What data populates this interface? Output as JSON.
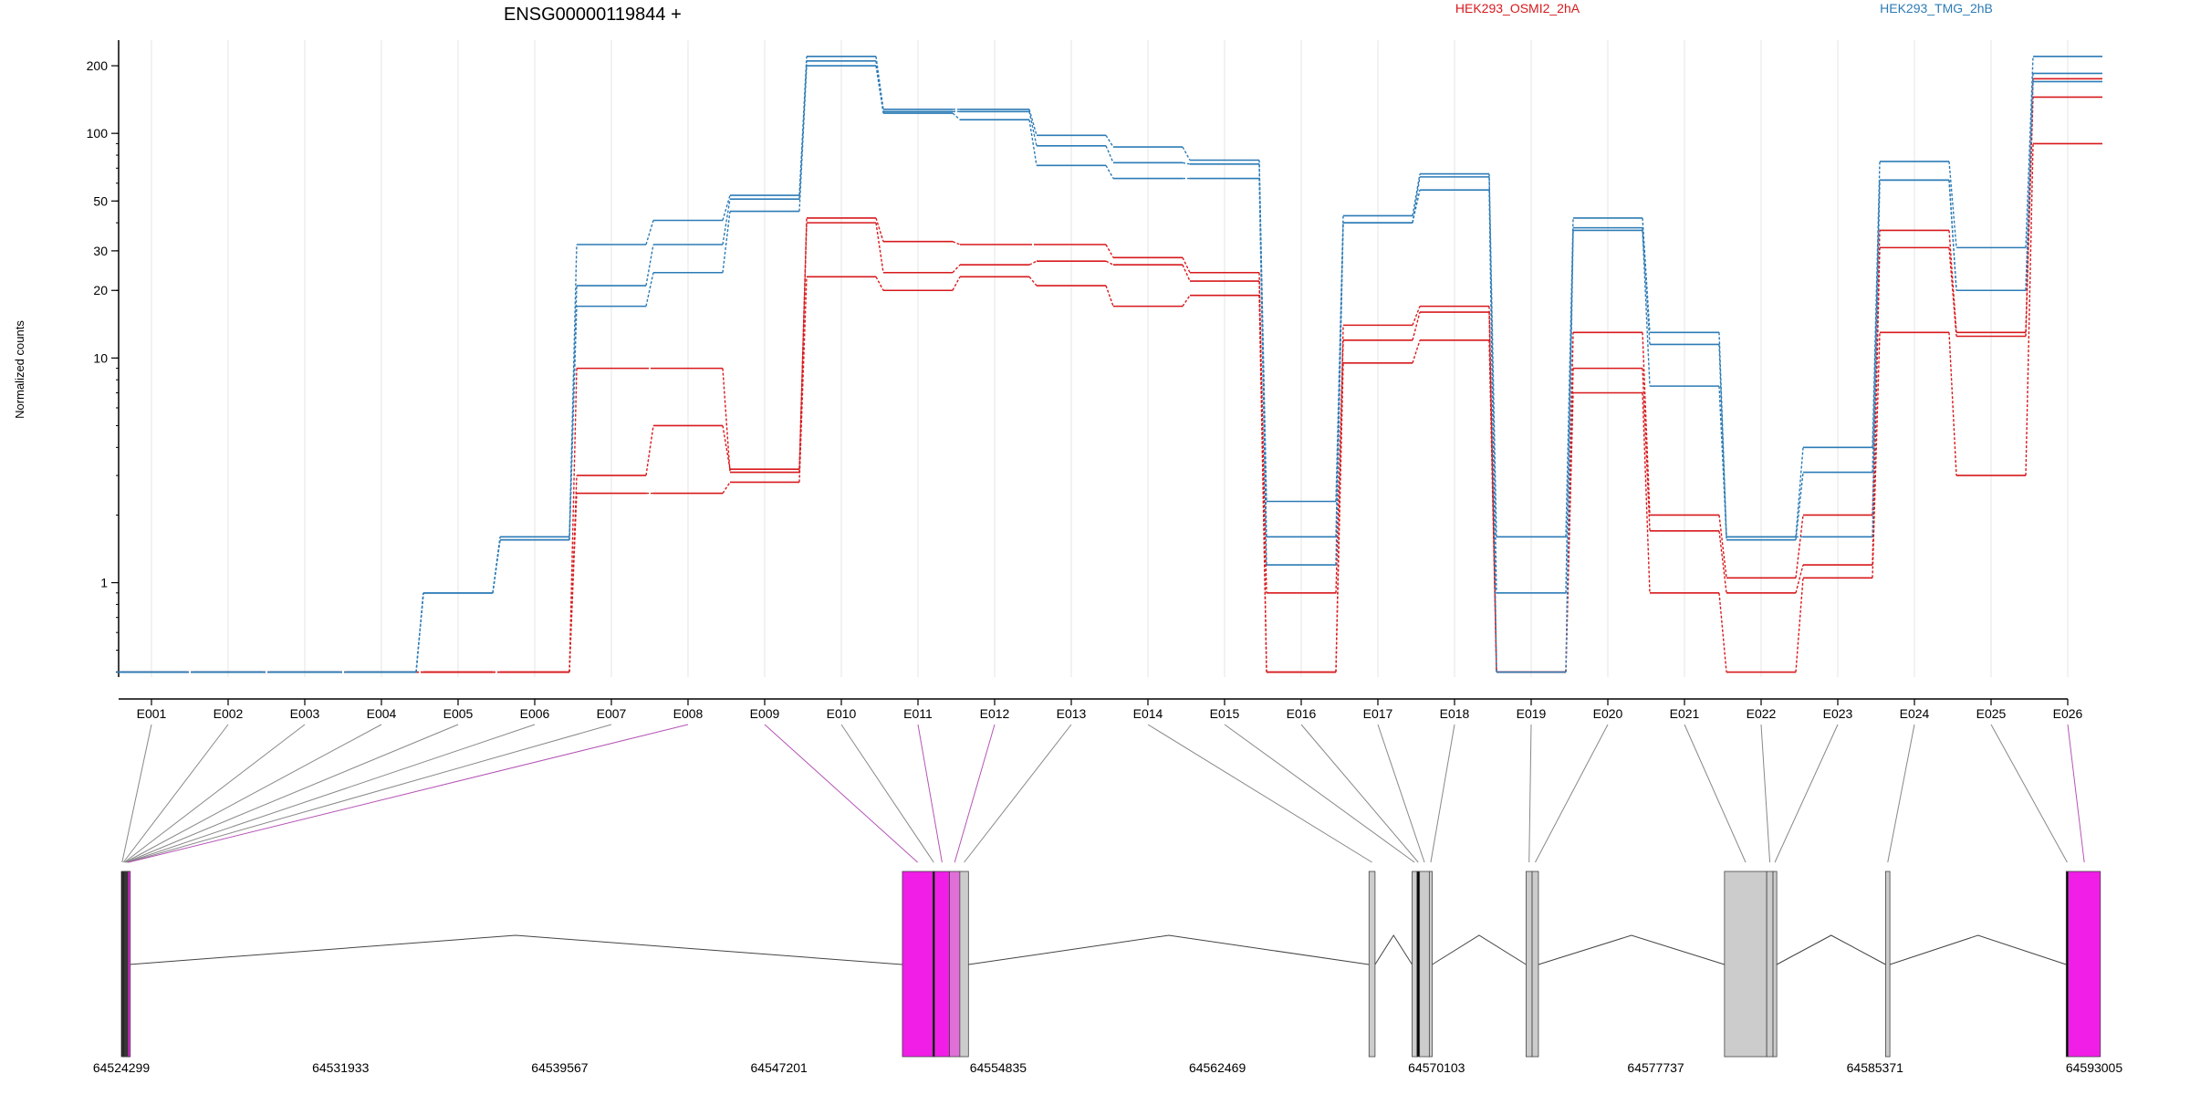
{
  "chart_data": {
    "type": "line",
    "title": "ENSG00000119844 +",
    "ylabel": "Normalized counts",
    "xlabel": "",
    "y_scale": "log",
    "y_ticks": [
      1,
      10,
      20,
      30,
      50,
      100,
      200
    ],
    "ylim": [
      0.38,
      260
    ],
    "categories": [
      "E001",
      "E002",
      "E003",
      "E004",
      "E005",
      "E006",
      "E007",
      "E008",
      "E009",
      "E010",
      "E011",
      "E012",
      "E013",
      "E014",
      "E015",
      "E016",
      "E017",
      "E018",
      "E019",
      "E020",
      "E021",
      "E022",
      "E023",
      "E024",
      "E025",
      "E026"
    ],
    "legend": [
      {
        "name": "HEK293_OSMI2_2hA",
        "color": "#d7191c",
        "position": "top"
      },
      {
        "name": "HEK293_TMG_2hB",
        "color": "#2c7bb6",
        "position": "top-right"
      }
    ],
    "series": [
      {
        "group": "HEK293_OSMI2_2hA",
        "color": "#d7191c",
        "values": [
          0.4,
          0.4,
          0.4,
          0.4,
          0.4,
          0.4,
          9,
          9,
          3.1,
          42,
          33,
          32,
          32,
          28,
          24,
          0.4,
          14,
          17,
          0.4,
          13,
          2,
          1.05,
          2,
          37,
          13,
          175
        ]
      },
      {
        "group": "HEK293_OSMI2_2hA",
        "color": "#d7191c",
        "values": [
          0.4,
          0.4,
          0.4,
          0.4,
          0.4,
          0.4,
          3,
          5,
          3.2,
          40,
          24,
          26,
          27,
          26,
          22,
          0.9,
          12,
          16,
          0.4,
          9,
          1.7,
          0.9,
          1.2,
          31,
          12.5,
          145
        ]
      },
      {
        "group": "HEK293_OSMI2_2hA",
        "color": "#d7191c",
        "values": [
          0.4,
          0.4,
          0.4,
          0.4,
          0.4,
          0.4,
          2.5,
          2.5,
          2.8,
          23,
          20,
          23,
          21,
          17,
          19,
          0.4,
          9.5,
          12,
          0.4,
          7,
          0.9,
          0.4,
          1.05,
          13,
          3,
          90
        ]
      },
      {
        "group": "HEK293_TMG_2hB",
        "color": "#2c7bb6",
        "values": [
          0.4,
          0.4,
          0.4,
          0.4,
          0.9,
          1.6,
          32,
          41,
          53,
          220,
          128,
          128,
          98,
          87,
          76,
          2.3,
          43,
          66,
          1.6,
          42,
          13,
          1.6,
          4,
          75,
          31,
          220
        ]
      },
      {
        "group": "HEK293_TMG_2hB",
        "color": "#2c7bb6",
        "values": [
          0.4,
          0.4,
          0.4,
          0.4,
          0.9,
          1.55,
          21,
          32,
          51,
          210,
          125,
          125,
          88,
          74,
          73,
          1.6,
          40,
          64,
          0.9,
          38,
          11.5,
          1.55,
          3.1,
          62,
          20,
          185
        ]
      },
      {
        "group": "HEK293_TMG_2hB",
        "color": "#2c7bb6",
        "values": [
          0.4,
          0.4,
          0.4,
          0.4,
          0.9,
          1.55,
          17,
          24,
          45,
          200,
          123,
          115,
          72,
          63,
          63,
          1.2,
          40,
          56,
          0.4,
          37,
          7.5,
          1.6,
          1.6,
          62,
          20,
          170
        ]
      }
    ],
    "genomic_axis": {
      "tick_labels": [
        "64524299",
        "64531933",
        "64539567",
        "64547201",
        "64554835",
        "64562469",
        "64570103",
        "64577737",
        "64585371",
        "64593005"
      ],
      "range": [
        64524299,
        64593005
      ]
    },
    "gene_model": {
      "exons": [
        {
          "id": "E001",
          "start": 64524299,
          "end": 64524350,
          "color": "#000000"
        },
        {
          "id": "E002",
          "start": 64524350,
          "end": 64524390,
          "color": "#000000"
        },
        {
          "id": "E003",
          "start": 64524390,
          "end": 64524420,
          "color": "#000000"
        },
        {
          "id": "E004",
          "start": 64524420,
          "end": 64524450,
          "color": "#000000"
        },
        {
          "id": "E005",
          "start": 64524450,
          "end": 64524480,
          "color": "#000000"
        },
        {
          "id": "E006",
          "start": 64524480,
          "end": 64524510,
          "color": "#000000"
        },
        {
          "id": "E007",
          "start": 64524510,
          "end": 64524530,
          "color": "#000000"
        },
        {
          "id": "E008",
          "start": 64524530,
          "end": 64524560,
          "color": "#f01ee6"
        },
        {
          "id": "E009",
          "start": 64551500,
          "end": 64552560,
          "color": "#f01ee6"
        },
        {
          "id": "E010",
          "start": 64552560,
          "end": 64552620,
          "color": "#000000"
        },
        {
          "id": "E011",
          "start": 64552620,
          "end": 64553140,
          "color": "#f01ee6"
        },
        {
          "id": "E012",
          "start": 64553140,
          "end": 64553500,
          "color": "#e070d8"
        },
        {
          "id": "E013",
          "start": 64553500,
          "end": 64553800,
          "color": "#cccccc"
        },
        {
          "id": "E014",
          "start": 64567750,
          "end": 64567960,
          "color": "#cccccc"
        },
        {
          "id": "E015",
          "start": 64569250,
          "end": 64569420,
          "color": "#cccccc"
        },
        {
          "id": "E016",
          "start": 64569420,
          "end": 64569510,
          "color": "#000000"
        },
        {
          "id": "E017",
          "start": 64569510,
          "end": 64569850,
          "color": "#cccccc"
        },
        {
          "id": "E018",
          "start": 64569850,
          "end": 64569950,
          "color": "#cccccc"
        },
        {
          "id": "E019",
          "start": 64573220,
          "end": 64573430,
          "color": "#cccccc"
        },
        {
          "id": "E020",
          "start": 64573430,
          "end": 64573650,
          "color": "#cccccc"
        },
        {
          "id": "E021",
          "start": 64580130,
          "end": 64581600,
          "color": "#cccccc"
        },
        {
          "id": "E022",
          "start": 64581600,
          "end": 64581820,
          "color": "#cccccc"
        },
        {
          "id": "E023",
          "start": 64581820,
          "end": 64581950,
          "color": "#cccccc"
        },
        {
          "id": "E024",
          "start": 64585740,
          "end": 64585890,
          "color": "#cccccc"
        },
        {
          "id": "E025",
          "start": 64592030,
          "end": 64592100,
          "color": "#000000"
        },
        {
          "id": "E026",
          "start": 64592100,
          "end": 64593220,
          "color": "#f01ee6"
        }
      ],
      "intron_peaks": [
        [
          64524560,
          64551500
        ],
        [
          64553800,
          64567750
        ],
        [
          64567960,
          64569250
        ],
        [
          64569950,
          64573220
        ],
        [
          64573650,
          64580130
        ],
        [
          64581950,
          64585740
        ],
        [
          64585890,
          64592030
        ]
      ]
    }
  }
}
